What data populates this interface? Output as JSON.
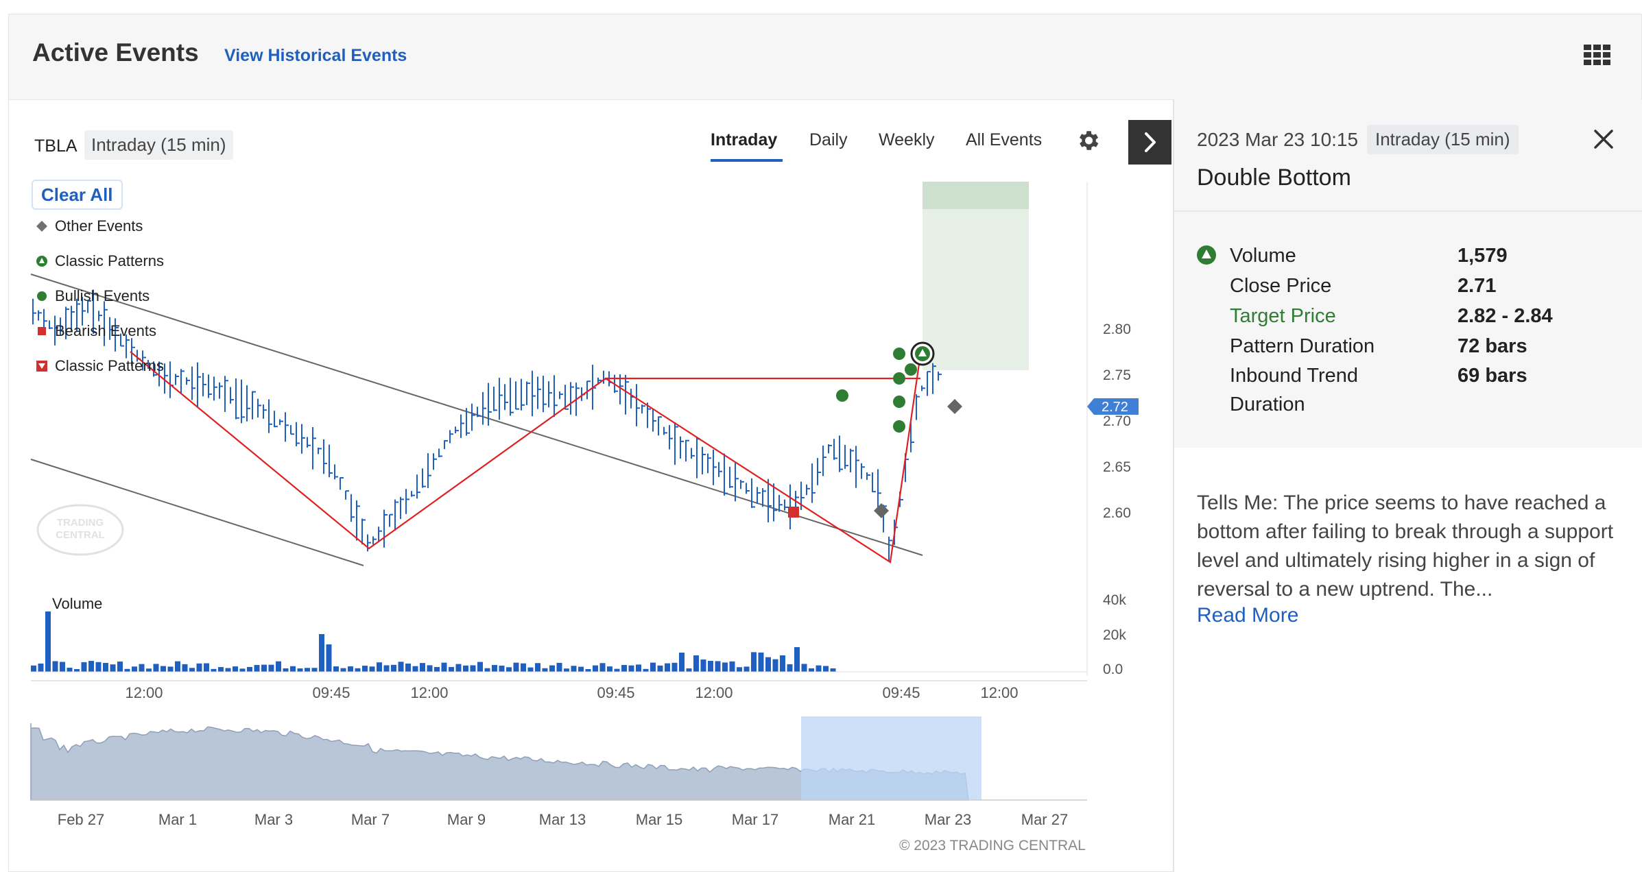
{
  "header": {
    "title": "Active Events",
    "historical_link": "View Historical Events"
  },
  "chart_controls": {
    "symbol": "TBLA",
    "interval": "Intraday (15 min)",
    "tabs": [
      "Intraday",
      "Daily",
      "Weekly",
      "All Events"
    ],
    "active_tab": "Intraday"
  },
  "legend": {
    "clear_all": "Clear All",
    "items": [
      {
        "label": "Other Events",
        "icon": "gray-diamond-icon",
        "color": "#707070"
      },
      {
        "label": "Classic Patterns",
        "icon": "green-triangle-circle-icon",
        "color": "#2e7d32"
      },
      {
        "label": "Bullish Events",
        "icon": "green-dot-icon",
        "color": "#2e7d32"
      },
      {
        "label": "Bearish Events",
        "icon": "red-square-icon",
        "color": "#d32f2f"
      },
      {
        "label": "Classic Patterns",
        "icon": "red-triangle-square-icon",
        "color": "#d32f2f"
      }
    ]
  },
  "chart_data": {
    "type": "line",
    "price_axis": {
      "ticks": [
        "2.80",
        "2.75",
        "2.70",
        "2.65",
        "2.60"
      ],
      "current_price": "2.72"
    },
    "volume_axis": {
      "ticks": [
        "40k",
        "20k",
        "0.0"
      ],
      "label": "Volume"
    },
    "time_axis": {
      "ticks": [
        "12:00",
        "09:45",
        "12:00",
        "09:45",
        "12:00",
        "09:45",
        "12:00"
      ]
    },
    "navigator_axis": {
      "ticks": [
        "Feb 27",
        "Mar 1",
        "Mar 3",
        "Mar 7",
        "Mar 9",
        "Mar 13",
        "Mar 15",
        "Mar 17",
        "Mar 21",
        "Mar 23",
        "Mar 27"
      ]
    },
    "target_range": [
      2.82,
      2.84
    ],
    "colors": {
      "price": "#1f5fbf",
      "pattern": "#e02020",
      "trend": "#555555",
      "target_zone": "#e7f0e7",
      "volume": "#1f5fbf",
      "navigator": "#b9c6d8"
    }
  },
  "chart_footer": {
    "copyright": "© 2023 TRADING CENTRAL",
    "watermark": "TRADING CENTRAL"
  },
  "event_panel": {
    "date": "2023 Mar 23 10:15",
    "interval": "Intraday (15 min)",
    "name": "Double Bottom",
    "details": [
      {
        "label": "Volume",
        "value": "1,579"
      },
      {
        "label": "Close Price",
        "value": "2.71"
      },
      {
        "label": "Target Price",
        "value": "2.82 - 2.84"
      },
      {
        "label": "Pattern Duration",
        "value": "72 bars"
      },
      {
        "label": "Inbound Trend",
        "value": "69 bars"
      },
      {
        "label": "Duration",
        "value": ""
      }
    ],
    "description": "Tells Me: The price seems to have reached a bottom after failing to break through a support level and ultimately rising higher in a sign of reversal to a new uptrend. The...",
    "read_more": "Read More"
  }
}
